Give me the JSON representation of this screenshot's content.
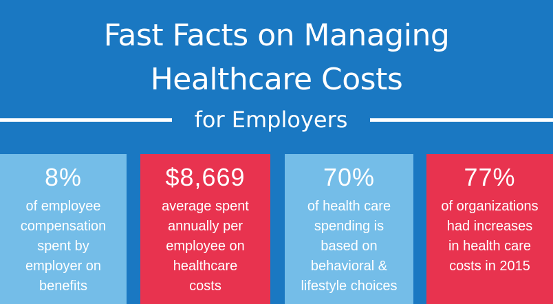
{
  "header": {
    "title_line1": "Fast Facts on Managing",
    "title_line2": "Healthcare Costs",
    "subtitle": "for Employers"
  },
  "colors": {
    "background": "#1a78c2",
    "card_light_blue": "#74bde8",
    "card_red": "#e8334f",
    "text": "#ffffff"
  },
  "facts": [
    {
      "value": "8%",
      "lines": [
        "of employee",
        "compensation",
        "spent by",
        "employer on",
        "benefits"
      ],
      "color": "#74bde8"
    },
    {
      "value": "$8,669",
      "lines": [
        "average spent",
        "annually per",
        "employee on",
        "healthcare",
        "costs"
      ],
      "color": "#e8334f"
    },
    {
      "value": "70%",
      "lines": [
        "of health care",
        "spending is",
        "based on",
        "behavioral &",
        "lifestyle choices"
      ],
      "color": "#74bde8"
    },
    {
      "value": "77%",
      "lines": [
        "of organizations",
        "had increases",
        "in health care",
        "costs in 2015"
      ],
      "color": "#e8334f"
    }
  ]
}
